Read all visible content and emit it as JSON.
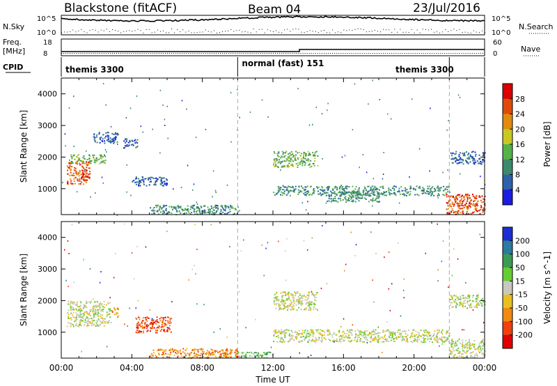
{
  "header": {
    "station": "Blackstone (fitACF)",
    "beam": "Beam 04",
    "date": "23/Jul/2016"
  },
  "top_panels": {
    "nsky_label": "N.Sky",
    "nsky_ticks": [
      "10^5",
      "10^0"
    ],
    "nsearch_label": "N.Search",
    "nsearch_ticks": [
      "10^5",
      "10^0"
    ],
    "freq_label": "Freq.",
    "freq_unit": "[MHz]",
    "freq_ticks": [
      "18",
      "8"
    ],
    "nave_label": "Nave",
    "nave_ticks": [
      "60",
      "0"
    ],
    "cpid_label": "CPID",
    "cpid_segments": [
      {
        "name": "themis 3300",
        "start": 0,
        "end": 10
      },
      {
        "name": "normal (fast) 151",
        "start": 10,
        "end": 22
      },
      {
        "name": "themis 3300",
        "start": 22,
        "end": 24
      }
    ]
  },
  "chart_data": [
    {
      "type": "heatmap",
      "title": "Power",
      "ylabel": "Slant Range [km]",
      "xlabel": "",
      "xlim": [
        0,
        24
      ],
      "ylim": [
        180,
        4500
      ],
      "y_ticks": [
        1000,
        2000,
        3000,
        4000
      ],
      "colorbar_label": "Power [dB]",
      "colorbar_ticks": [
        4,
        8,
        12,
        16,
        20,
        24,
        28
      ],
      "colorbar_range": [
        0,
        32
      ],
      "colors": [
        "#1c1ce0",
        "#2e62a8",
        "#3c8a6a",
        "#55b24a",
        "#c8c820",
        "#e08a10",
        "#e04a08",
        "#d80000"
      ],
      "regions": [
        {
          "x": [
            0.3,
            1.6
          ],
          "y": [
            1150,
            1900
          ],
          "level": 6
        },
        {
          "x": [
            0.5,
            2.5
          ],
          "y": [
            1800,
            2100
          ],
          "level": 3
        },
        {
          "x": [
            1.8,
            3.2
          ],
          "y": [
            2450,
            2800
          ],
          "level": 1
        },
        {
          "x": [
            3.5,
            4.3
          ],
          "y": [
            2300,
            2600
          ],
          "level": 1
        },
        {
          "x": [
            4.0,
            6.0
          ],
          "y": [
            1100,
            1400
          ],
          "level": 1
        },
        {
          "x": [
            5.0,
            10.0
          ],
          "y": [
            200,
            500
          ],
          "level": 2
        },
        {
          "x": [
            12.0,
            22.0
          ],
          "y": [
            800,
            1100
          ],
          "level": 2
        },
        {
          "x": [
            12.0,
            14.5
          ],
          "y": [
            1700,
            2200
          ],
          "level": 3
        },
        {
          "x": [
            15.0,
            18.0
          ],
          "y": [
            600,
            900
          ],
          "level": 2
        },
        {
          "x": [
            21.8,
            24.0
          ],
          "y": [
            200,
            850
          ],
          "level": 6
        },
        {
          "x": [
            22.0,
            24.0
          ],
          "y": [
            1800,
            2200
          ],
          "level": 1
        }
      ]
    },
    {
      "type": "heatmap",
      "title": "Velocity",
      "ylabel": "Slant Range [km]",
      "xlabel": "Time UT",
      "xlim": [
        0,
        24
      ],
      "ylim": [
        180,
        4500
      ],
      "x_ticks": [
        "00:00",
        "04:00",
        "08:00",
        "12:00",
        "16:00",
        "20:00",
        "00:00"
      ],
      "y_ticks": [
        1000,
        2000,
        3000,
        4000
      ],
      "colorbar_label": "Velocity [m s^-1]",
      "colorbar_ticks": [
        "200",
        "100",
        "50",
        "15",
        "-15",
        "-50",
        "-100",
        "-200"
      ],
      "colors": [
        "#1c2ed0",
        "#2b7aa0",
        "#3c9a55",
        "#66cc33",
        "#c8c8c0",
        "#e8c020",
        "#f08a10",
        "#f04010",
        "#e00000"
      ],
      "regions": [
        {
          "x": [
            0.3,
            2.8
          ],
          "y": [
            1200,
            2000
          ],
          "level": 4
        },
        {
          "x": [
            2.8,
            3.2
          ],
          "y": [
            1500,
            1800
          ],
          "level": 6
        },
        {
          "x": [
            4.2,
            6.2
          ],
          "y": [
            1000,
            1500
          ],
          "level": 7
        },
        {
          "x": [
            5.0,
            10.0
          ],
          "y": [
            200,
            500
          ],
          "level": 6
        },
        {
          "x": [
            10.0,
            12.0
          ],
          "y": [
            200,
            400
          ],
          "level": 3
        },
        {
          "x": [
            12.0,
            22.0
          ],
          "y": [
            700,
            1100
          ],
          "level": 4
        },
        {
          "x": [
            12.0,
            14.5
          ],
          "y": [
            1700,
            2300
          ],
          "level": 4
        },
        {
          "x": [
            22.0,
            24.0
          ],
          "y": [
            200,
            800
          ],
          "level": 4
        },
        {
          "x": [
            22.0,
            24.0
          ],
          "y": [
            1800,
            2200
          ],
          "level": 4
        }
      ]
    }
  ]
}
